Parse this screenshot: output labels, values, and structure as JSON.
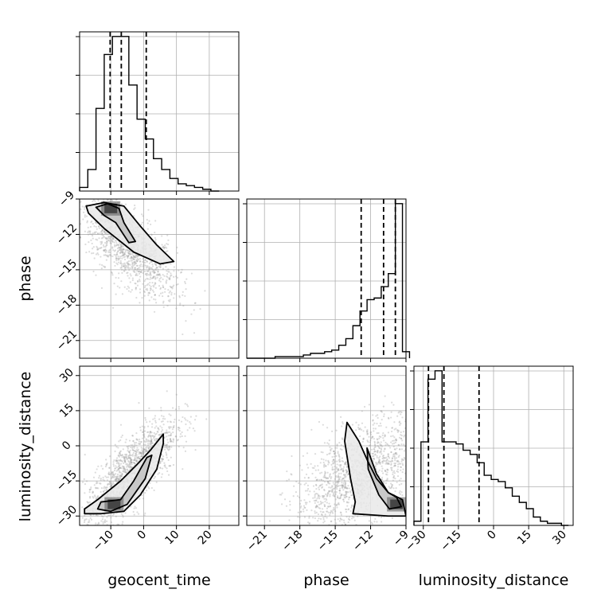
{
  "chart_data": {
    "type": "corner",
    "parameters": [
      "geocent_time",
      "phase",
      "luminosity_distance"
    ],
    "axes": {
      "geocent_time": {
        "range": [
          -19.5,
          29
        ],
        "ticks": [
          -10,
          0,
          10,
          20
        ],
        "tick_labels": [
          "−10",
          "0",
          "10",
          "20"
        ]
      },
      "phase": {
        "range": [
          -22.5,
          -9
        ],
        "ticks": [
          -21,
          -18,
          -15,
          -12,
          -9
        ],
        "tick_labels": [
          "−21",
          "−18",
          "−15",
          "−12",
          "−9"
        ]
      },
      "luminosity_distance": {
        "range": [
          -34,
          34
        ],
        "ticks": [
          -30,
          -15,
          0,
          15,
          30
        ],
        "tick_labels": [
          "−30",
          "−15",
          "0",
          "15",
          "30"
        ]
      }
    },
    "grid": true,
    "histograms": [
      {
        "param": "geocent_time",
        "bin_edges": [
          -19.5,
          -17,
          -14.5,
          -12,
          -9.5,
          -7,
          -4.5,
          -2,
          0.5,
          3,
          5.5,
          8,
          10.5,
          13,
          15.5,
          18,
          20.5,
          23
        ],
        "counts": [
          2,
          12,
          46,
          76,
          86,
          86,
          59,
          40,
          29,
          18,
          12,
          7,
          4,
          3,
          2,
          1,
          0
        ],
        "quantiles": [
          -10.2,
          -6.8,
          0.8
        ]
      },
      {
        "param": "phase",
        "bin_edges": [
          -22.5,
          -21.9,
          -21.3,
          -20.7,
          -20.1,
          -19.5,
          -18.9,
          -18.3,
          -17.7,
          -17.1,
          -16.5,
          -15.9,
          -15.3,
          -14.7,
          -14.1,
          -13.5,
          -12.9,
          -12.3,
          -11.7,
          -11.1,
          -10.5,
          -9.9,
          -9.3,
          -8.7
        ],
        "counts": [
          0,
          0,
          0,
          0,
          1,
          1,
          1,
          1,
          2,
          3,
          3,
          4,
          5,
          8,
          12,
          20,
          29,
          36,
          37,
          44,
          52,
          95,
          4
        ],
        "quantiles": [
          -12.8,
          -10.9,
          -9.9
        ]
      },
      {
        "param": "luminosity_distance",
        "bin_edges": [
          -34,
          -31,
          -28,
          -25,
          -22,
          -19,
          -16,
          -13,
          -10,
          -7,
          -4,
          -1,
          2,
          5,
          8,
          11,
          14,
          17,
          20,
          23,
          26,
          29,
          32
        ],
        "counts": [
          2,
          40,
          70,
          74,
          40,
          40,
          39,
          36,
          34,
          30,
          24,
          22,
          21,
          18,
          14,
          11,
          8,
          4,
          2,
          1,
          1,
          0
        ],
        "quantiles": [
          -27.8,
          -21.2,
          -6.2
        ]
      }
    ],
    "joint_distributions": [
      {
        "x": "geocent_time",
        "y": "phase",
        "mode": [
          -10,
          -9.8
        ],
        "contour_inner": [
          [
            -14.5,
            -9.7
          ],
          [
            -11,
            -9.4
          ],
          [
            -7.5,
            -9.8
          ],
          [
            -6,
            -11
          ],
          [
            -2.5,
            -12.6
          ],
          [
            -4.5,
            -12.7
          ],
          [
            -8.5,
            -11
          ],
          [
            -12,
            -10.4
          ]
        ],
        "contour_outer": [
          [
            -17.5,
            -9.6
          ],
          [
            -12,
            -9.3
          ],
          [
            -6,
            -9.6
          ],
          [
            -1,
            -11.3
          ],
          [
            4,
            -12.9
          ],
          [
            9.2,
            -14.3
          ],
          [
            5,
            -14.5
          ],
          [
            -3,
            -13.5
          ],
          [
            -12,
            -11.5
          ],
          [
            -16.8,
            -10.2
          ]
        ],
        "samples": {
          "count": 1400,
          "center": [
            -5,
            -13
          ],
          "spread": [
            7.5,
            2.2
          ],
          "corr": -0.72
        }
      },
      {
        "x": "geocent_time",
        "y": "luminosity_distance",
        "mode": [
          -9,
          -25
        ],
        "contour_inner": [
          [
            -13,
            -24
          ],
          [
            -7,
            -23
          ],
          [
            -3,
            -15
          ],
          [
            1,
            -5
          ],
          [
            2.5,
            -4
          ],
          [
            0.5,
            -14
          ],
          [
            -5,
            -25
          ],
          [
            -10,
            -28
          ],
          [
            -14,
            -27
          ]
        ],
        "contour_outer": [
          [
            -18,
            -27
          ],
          [
            -14,
            -23
          ],
          [
            -7,
            -15
          ],
          [
            -2,
            -8
          ],
          [
            2,
            -2
          ],
          [
            6,
            5
          ],
          [
            6,
            1
          ],
          [
            4,
            -10
          ],
          [
            -1,
            -21
          ],
          [
            -6,
            -28
          ],
          [
            -13,
            -29
          ],
          [
            -18,
            -29
          ]
        ],
        "samples": {
          "count": 1600,
          "center": [
            -4,
            -12
          ],
          "spread": [
            7,
            12
          ],
          "corr": 0.78
        }
      },
      {
        "x": "phase",
        "y": "luminosity_distance",
        "mode": [
          -9.8,
          -25
        ],
        "contour_inner": [
          [
            -12.3,
            -1
          ],
          [
            -11.5,
            -12
          ],
          [
            -10.5,
            -20
          ],
          [
            -9.8,
            -22
          ],
          [
            -9.4,
            -26
          ],
          [
            -10.4,
            -27
          ],
          [
            -11.3,
            -21
          ],
          [
            -12.2,
            -10
          ]
        ],
        "contour_outer": [
          [
            -14,
            10
          ],
          [
            -13,
            2
          ],
          [
            -12.2,
            -7
          ],
          [
            -11.5,
            -14
          ],
          [
            -10.5,
            -20
          ],
          [
            -9.3,
            -23
          ],
          [
            -9,
            -30
          ],
          [
            -10.5,
            -30
          ],
          [
            -13.5,
            -29
          ],
          [
            -13.3,
            -24
          ],
          [
            -13.7,
            -14
          ],
          [
            -14.2,
            2
          ]
        ],
        "samples": {
          "count": 1500,
          "center": [
            -13,
            -12
          ],
          "spread": [
            2.7,
            12
          ],
          "corr": 0.55
        }
      }
    ]
  }
}
